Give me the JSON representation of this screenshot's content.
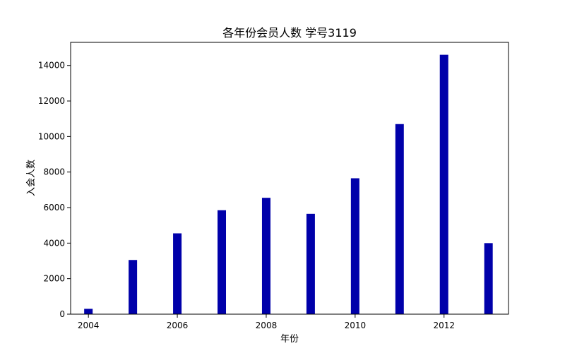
{
  "chart_data": {
    "type": "bar",
    "title": "各年份会员人数 学号3119",
    "xlabel": "年份",
    "ylabel": "入会人数",
    "x": [
      2004,
      2005,
      2006,
      2007,
      2008,
      2009,
      2010,
      2011,
      2012,
      2013
    ],
    "values": [
      300,
      3050,
      4550,
      5850,
      6550,
      5650,
      7650,
      10700,
      14600,
      4000
    ],
    "xlim": [
      2003.6,
      2013.45
    ],
    "ylim": [
      0,
      15300
    ],
    "xticks": [
      2004,
      2006,
      2008,
      2010,
      2012
    ],
    "yticks": [
      0,
      2000,
      4000,
      6000,
      8000,
      10000,
      12000,
      14000
    ],
    "bar_color": "#0000aa",
    "grid": false,
    "legend": "none"
  }
}
